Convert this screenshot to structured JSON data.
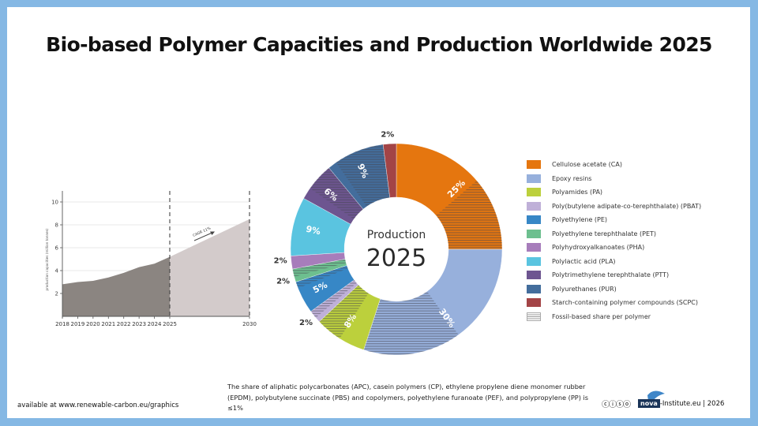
{
  "title": "Bio-based Polymer Capacities and Production Worldwide 2025",
  "colors": {
    "frame": "#85b8e4",
    "area_historic": "#8b8581",
    "area_forecast": "#d3cbcb"
  },
  "area_chart": {
    "ylabel": "production capacities (million tonnes)",
    "annotation": "CAGR 11%"
  },
  "donut": {
    "center_line1": "Production",
    "center_line2": "2025"
  },
  "legend": [
    {
      "label": "Cellulose acetate (CA)",
      "color": "#e5760f"
    },
    {
      "label": "Epoxy resins",
      "color": "#97b0dc"
    },
    {
      "label": "Polyamides (PA)",
      "color": "#bcd03c"
    },
    {
      "label": "Poly(butylene adipate-co-terephthalate) (PBAT)",
      "color": "#bfb0d8"
    },
    {
      "label": "Polyethylene (PE)",
      "color": "#3787c6"
    },
    {
      "label": "Polyethylene terephthalate (PET)",
      "color": "#6dbf8f"
    },
    {
      "label": "Polyhydroxyalkanoates (PHA)",
      "color": "#a77dbb"
    },
    {
      "label": "Polylactic acid (PLA)",
      "color": "#5ac4e0"
    },
    {
      "label": "Polytrimethylene terephthalate (PTT)",
      "color": "#6d5590"
    },
    {
      "label": "Polyurethanes (PUR)",
      "color": "#436d9c"
    },
    {
      "label": "Starch-containing polymer compounds (SCPC)",
      "color": "#a34446"
    },
    {
      "label": "Fossil-based share per polymer",
      "color": "hatch"
    }
  ],
  "footnote": "The share of aliphatic polycarbonates (APC), casein polymers (CP), ethylene propylene diene monomer rubber (EPDM), polybutylene succinate (PBS)  and copolymers, polyethylene furanoate (PEF), and polypropylene (PP) is ≤1%",
  "footer": {
    "available": "available at www.renewable-carbon.eu/graphics",
    "license_icons": "ⓒⓘⓢⓞ",
    "nova": "nova",
    "institute": "-Institute.eu | 2026"
  },
  "chart_data": [
    {
      "type": "area",
      "title": "",
      "xlabel": "",
      "ylabel": "production capacities (million tonnes)",
      "x": [
        2018,
        2019,
        2020,
        2021,
        2022,
        2023,
        2024,
        2025,
        2030
      ],
      "x_ticks": [
        "2018",
        "2019",
        "2020",
        "2021",
        "2022",
        "2023",
        "2024",
        "2025",
        "2030"
      ],
      "y_ticks": [
        2,
        4,
        6,
        8,
        10
      ],
      "ylim": [
        0,
        11
      ],
      "grid": true,
      "series": [
        {
          "name": "historic",
          "x": [
            2018,
            2019,
            2020,
            2021,
            2022,
            2023,
            2024,
            2025
          ],
          "values": [
            2.8,
            3.0,
            3.1,
            3.4,
            3.8,
            4.3,
            4.6,
            5.2
          ]
        },
        {
          "name": "forecast",
          "x": [
            2025,
            2030
          ],
          "values": [
            5.2,
            8.5
          ]
        }
      ],
      "annotations": [
        "CAGR 11%"
      ],
      "vertical_dashed_lines": [
        2025,
        2030
      ]
    },
    {
      "type": "pie",
      "title": "Production 2025",
      "categories": [
        "Cellulose acetate (CA)",
        "Epoxy resins",
        "Polyamides (PA)",
        "Poly(butylene adipate-co-terephthalate) (PBAT)",
        "Polyethylene (PE)",
        "Polyethylene terephthalate (PET)",
        "Polyhydroxyalkanoates (PHA)",
        "Polylactic acid (PLA)",
        "Polytrimethylene terephthalate (PTT)",
        "Polyurethanes (PUR)",
        "Starch-containing polymer compounds (SCPC)"
      ],
      "values": [
        25,
        30,
        8,
        2,
        5,
        2,
        2,
        9,
        6,
        9,
        2
      ],
      "labels": [
        "25%",
        "30%",
        "8%",
        "2%",
        "5%",
        "2%",
        "2%",
        "9%",
        "6%",
        "9%",
        "2%"
      ],
      "fossil_share_fraction": [
        0.45,
        0.5,
        0.5,
        0.6,
        0.2,
        0.6,
        0.0,
        0.0,
        0.7,
        0.85,
        0.0
      ],
      "legend_position": "right",
      "donut": true
    }
  ]
}
